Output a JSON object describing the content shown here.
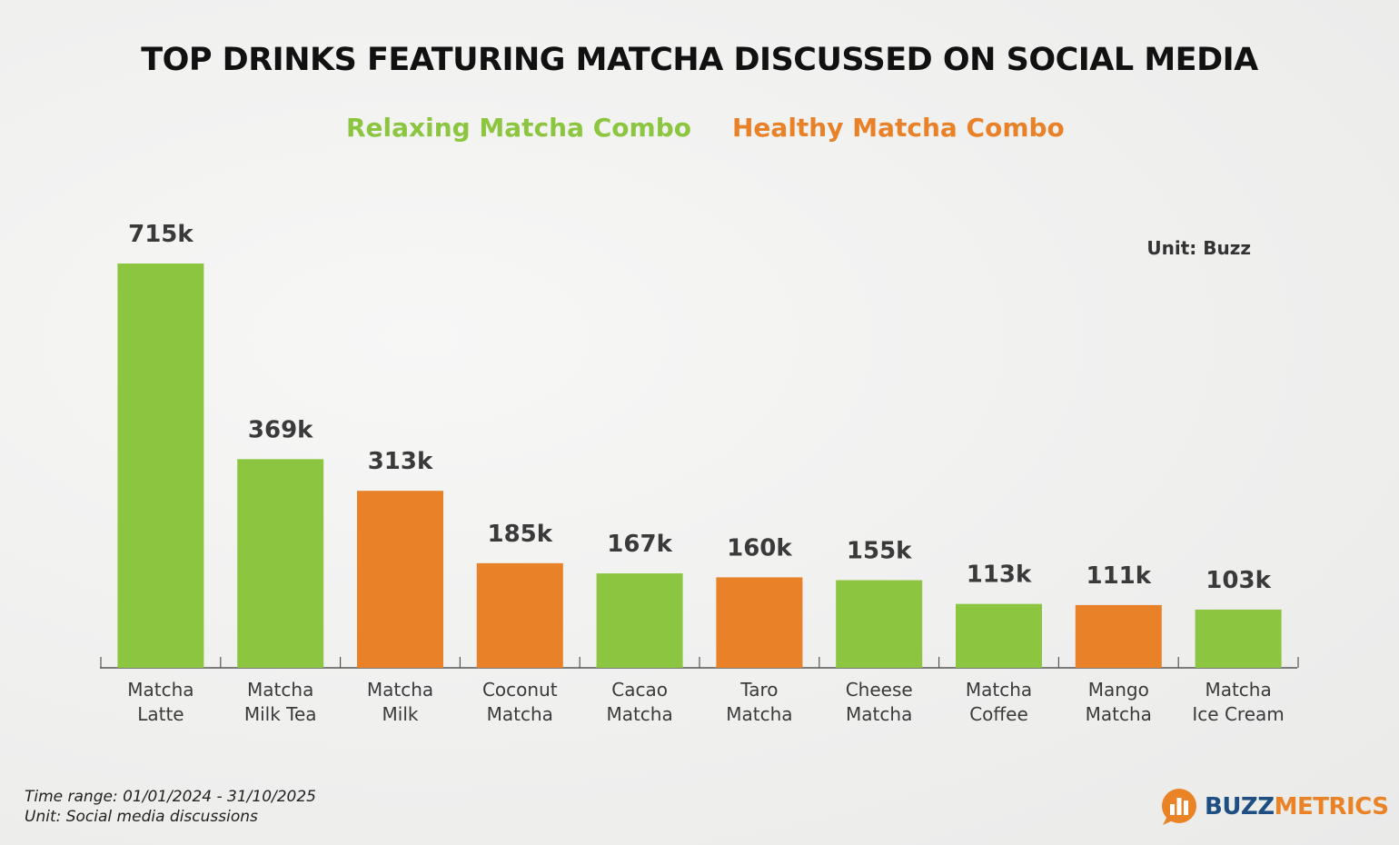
{
  "chart_data": {
    "type": "bar",
    "title": "TOP DRINKS FEATURING MATCHA DISCUSSED ON SOCIAL MEDIA",
    "legend": [
      {
        "name": "Relaxing Matcha Combo",
        "color": "#8cc540"
      },
      {
        "name": "Healthy Matcha Combo",
        "color": "#e88128"
      }
    ],
    "unit_label": "Unit: Buzz",
    "categories": [
      [
        "Matcha",
        "Latte"
      ],
      [
        "Matcha",
        "Milk Tea"
      ],
      [
        "Matcha",
        "Milk"
      ],
      [
        "Coconut",
        "Matcha"
      ],
      [
        "Cacao",
        "Matcha"
      ],
      [
        "Taro",
        "Matcha"
      ],
      [
        "Cheese",
        "Matcha"
      ],
      [
        "Matcha",
        "Coffee"
      ],
      [
        "Mango",
        "Matcha"
      ],
      [
        "Matcha",
        "Ice Cream"
      ]
    ],
    "values": [
      715,
      369,
      313,
      185,
      167,
      160,
      155,
      113,
      111,
      103
    ],
    "value_labels": [
      "715k",
      "369k",
      "313k",
      "185k",
      "167k",
      "160k",
      "155k",
      "113k",
      "111k",
      "103k"
    ],
    "series_index": [
      0,
      0,
      1,
      1,
      0,
      1,
      0,
      0,
      1,
      0
    ],
    "ylim": [
      0,
      800
    ],
    "xlabel": "",
    "ylabel": ""
  },
  "footer": {
    "time_range": "Time range: 01/01/2024 - 31/10/2025",
    "unit": "Unit: Social media discussions"
  },
  "logo": {
    "buzz": "BUZZ",
    "metrics": "METRICS"
  }
}
